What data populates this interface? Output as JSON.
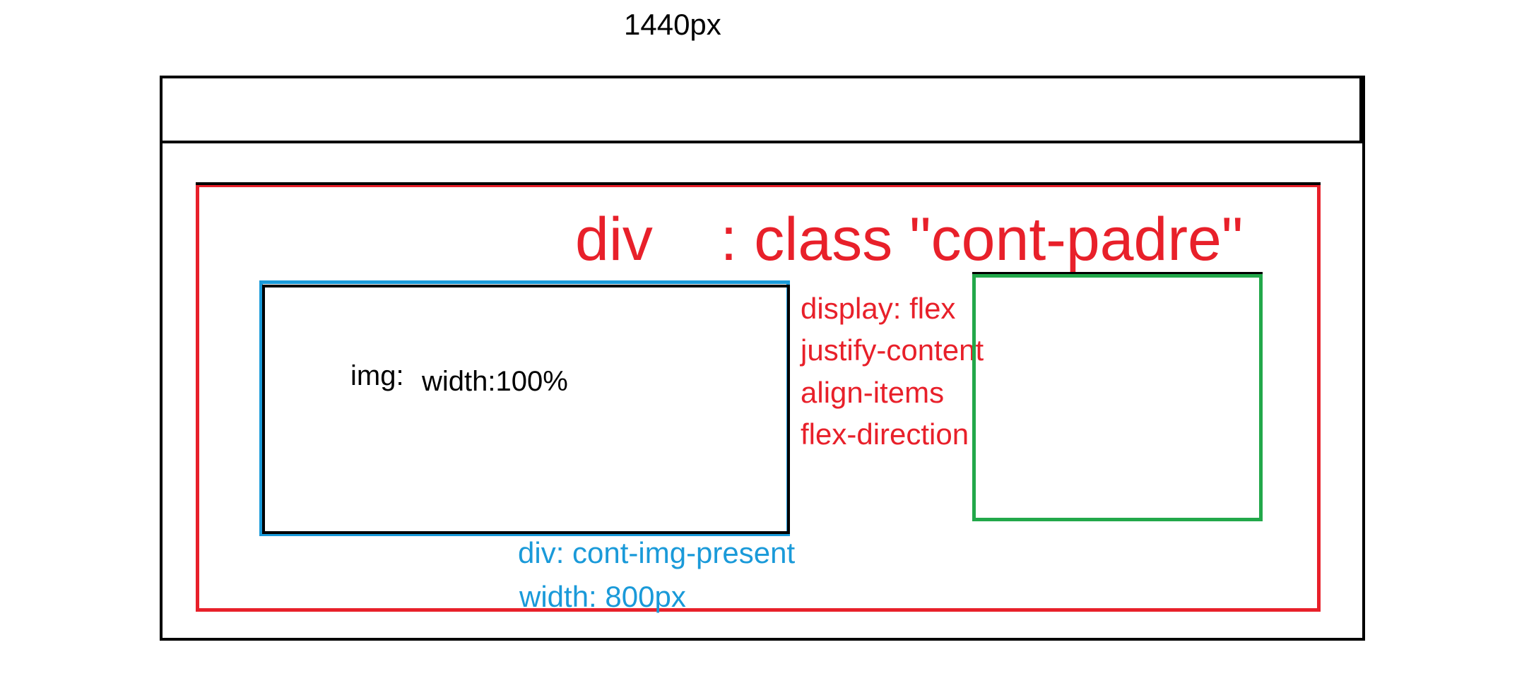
{
  "title": "1440px",
  "cont_padre": {
    "label": "div    : class \"cont-padre\"",
    "properties": [
      "display: flex",
      "justify-content",
      "align-items",
      "flex-direction"
    ]
  },
  "img": {
    "label": "img:",
    "width_label": "width:100%"
  },
  "cont_img_present": {
    "label": "div: cont-img-present",
    "width_label": "width: 800px"
  },
  "colors": {
    "cont_padre": "#e8202a",
    "cont_img_present": "#1a9ad9",
    "sibling_box": "#22a84a",
    "frame": "#000000"
  }
}
